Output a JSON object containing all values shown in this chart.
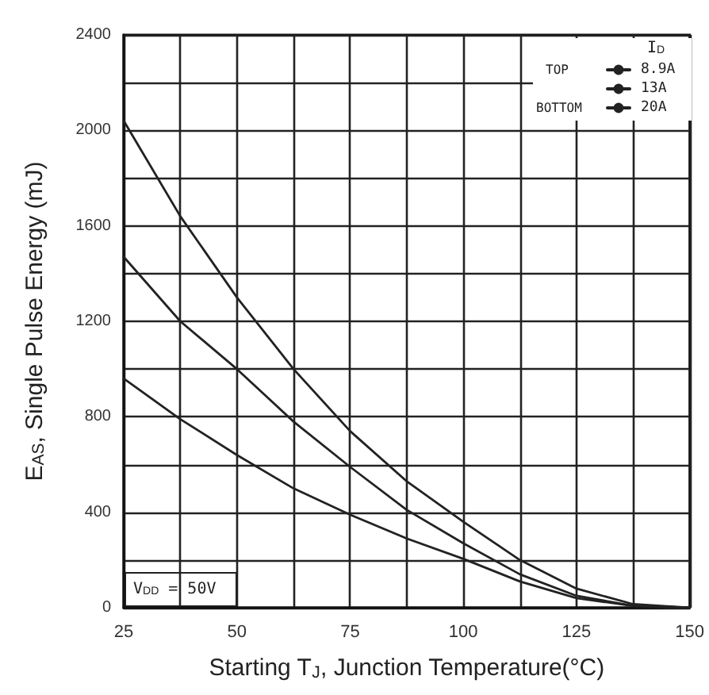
{
  "chart_data": {
    "type": "line",
    "xlabel": "Starting T$_{J}$, Junction Temperature(°C)",
    "ylabel": "E$_{AS}$, Single Pulse Energy (mJ)",
    "legend_title": "I$_{D}$",
    "x": [
      25,
      37.5,
      50,
      62.5,
      75,
      87.5,
      100,
      112.5,
      125,
      137.5,
      150
    ],
    "series": [
      {
        "name": "8.9A",
        "color": "#222222",
        "values": [
          2040,
          1640,
          1300,
          1000,
          740,
          530,
          360,
          200,
          80,
          15,
          0
        ]
      },
      {
        "name": "13A",
        "color": "#222222",
        "values": [
          1470,
          1200,
          1000,
          780,
          590,
          410,
          270,
          140,
          50,
          8,
          0
        ]
      },
      {
        "name": "20A",
        "color": "#222222",
        "values": [
          960,
          790,
          640,
          500,
          390,
          290,
          205,
          110,
          40,
          8,
          0
        ]
      }
    ],
    "annotations": [
      "TOP",
      "BOTTOM",
      "V$_{DD}$ = 50V"
    ],
    "xlim": [
      25,
      150
    ],
    "xticks": [
      25,
      {
        "value": 37.5,
        "label": null
      },
      50,
      {
        "value": 62.5,
        "label": null
      },
      75,
      {
        "value": 87.5,
        "label": null
      },
      100,
      {
        "value": 112.5,
        "label": null
      },
      125,
      {
        "value": 137.5,
        "label": null
      },
      150
    ],
    "ylim": [
      0,
      2400
    ],
    "yticks": [
      0,
      {
        "value": 200,
        "label": null
      },
      400,
      {
        "value": 600,
        "label": null
      },
      800,
      {
        "value": 1000,
        "label": null
      },
      1200,
      {
        "value": 1400,
        "label": null
      },
      1600,
      {
        "value": 1800,
        "label": null
      },
      2000,
      {
        "value": 2200,
        "label": null
      },
      2400
    ],
    "grid": true,
    "legend": "top right",
    "marker": "none",
    "line_style": "solid"
  }
}
